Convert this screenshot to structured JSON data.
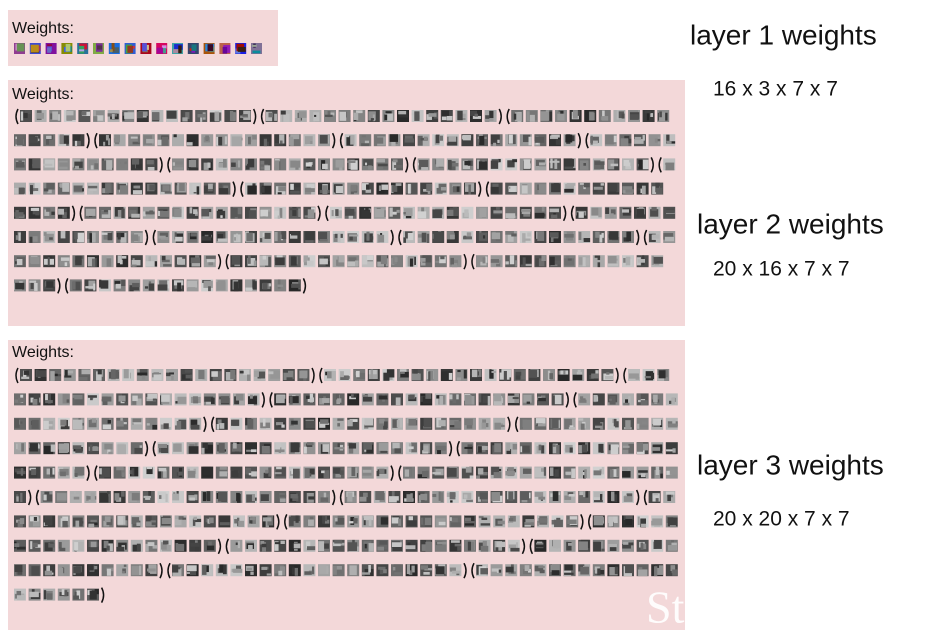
{
  "panels": [
    {
      "label": "Weights:"
    },
    {
      "label": "Weights:"
    },
    {
      "label": "Weights:"
    }
  ],
  "annotations": [
    {
      "title": "layer 1 weights",
      "dims": "16 x 3 x 7 x 7"
    },
    {
      "title": "layer 2 weights",
      "dims": "20 x 16 x 7 x 7"
    },
    {
      "title": "layer 3 weights",
      "dims": "20 x 20 x 7 x 7"
    }
  ],
  "watermark": "St"
}
